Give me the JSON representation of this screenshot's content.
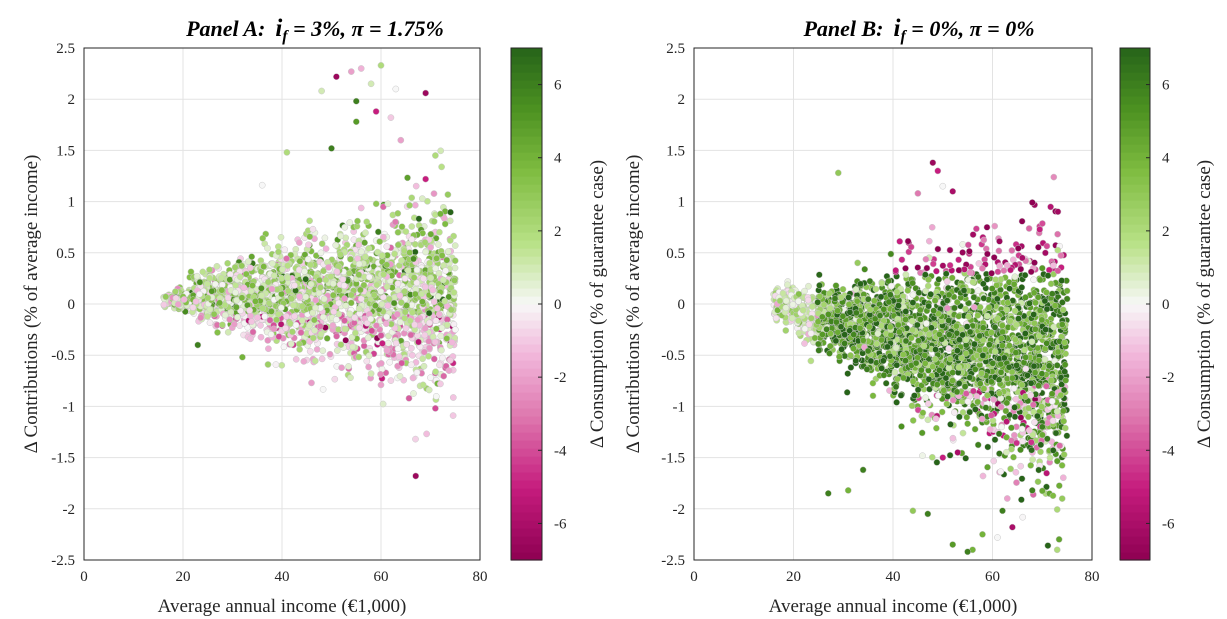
{
  "chart_data": [
    {
      "type": "scatter",
      "title": {
        "prefix": "Panel A:",
        "i_symbol": "i",
        "i_sub": "f",
        "i_value": " = 3%, ",
        "pi_symbol": "π",
        "pi_value": " = 1.75%"
      },
      "xlabel": "Average annual income (€1,000)",
      "ylabel": "Δ Contributions (% of average income)",
      "colorbar_label": "Δ Consumption (% of guarantee case)",
      "xlim": [
        0,
        80
      ],
      "ylim": [
        -2.5,
        2.5
      ],
      "clim": [
        -7,
        7
      ],
      "xticks": [
        "0",
        "20",
        "40",
        "60",
        "80"
      ],
      "yticks": [
        "-2.5",
        "-2",
        "-1.5",
        "-1",
        "-0.5",
        "0",
        "0.5",
        "1",
        "1.5",
        "2",
        "2.5"
      ],
      "cticks": [
        "-6",
        "-4",
        "-2",
        "0",
        "2",
        "4",
        "6"
      ],
      "grid": true,
      "colormap": "pink-white-green (PiYG)",
      "cloud": {
        "n": 2600,
        "x_min": 16,
        "x_max": 75,
        "y_center": 0.1,
        "c_center": 1.5
      },
      "points": [
        {
          "x": 51,
          "y": 2.22,
          "c": -6.5
        },
        {
          "x": 54,
          "y": 2.27,
          "c": -2
        },
        {
          "x": 56,
          "y": 2.3,
          "c": -1.5
        },
        {
          "x": 60,
          "y": 2.33,
          "c": 2
        },
        {
          "x": 58,
          "y": 2.15,
          "c": 1
        },
        {
          "x": 63,
          "y": 2.1,
          "c": 0
        },
        {
          "x": 48,
          "y": 2.08,
          "c": 1
        },
        {
          "x": 69,
          "y": 2.06,
          "c": -6.5
        },
        {
          "x": 55,
          "y": 1.98,
          "c": 6
        },
        {
          "x": 59,
          "y": 1.88,
          "c": -5
        },
        {
          "x": 62,
          "y": 1.82,
          "c": -1
        },
        {
          "x": 55,
          "y": 1.78,
          "c": 5
        },
        {
          "x": 64,
          "y": 1.6,
          "c": -2
        },
        {
          "x": 50,
          "y": 1.52,
          "c": 6
        },
        {
          "x": 41,
          "y": 1.48,
          "c": 2
        },
        {
          "x": 71,
          "y": 1.45,
          "c": 2
        },
        {
          "x": 36,
          "y": 1.16,
          "c": 0
        },
        {
          "x": 69,
          "y": 1.22,
          "c": -5
        },
        {
          "x": 72,
          "y": 0.88,
          "c": 4
        },
        {
          "x": 74,
          "y": 0.62,
          "c": 2
        },
        {
          "x": 75,
          "y": -0.25,
          "c": 0
        },
        {
          "x": 74,
          "y": -0.55,
          "c": -1
        },
        {
          "x": 70,
          "y": -0.72,
          "c": 0
        },
        {
          "x": 72,
          "y": -0.78,
          "c": -1
        },
        {
          "x": 60,
          "y": -0.79,
          "c": -2
        },
        {
          "x": 58,
          "y": -0.68,
          "c": 1
        },
        {
          "x": 71,
          "y": -1.02,
          "c": -4
        },
        {
          "x": 67,
          "y": -1.68,
          "c": -6.5
        },
        {
          "x": 32,
          "y": -0.52,
          "c": 4
        },
        {
          "x": 23,
          "y": -0.4,
          "c": 6
        }
      ]
    },
    {
      "type": "scatter",
      "title": {
        "prefix": "Panel B:",
        "i_symbol": "i",
        "i_sub": "f",
        "i_value": " = 0%, ",
        "pi_symbol": "π",
        "pi_value": " = 0%"
      },
      "xlabel": "Average annual income (€1,000)",
      "ylabel": "Δ Contributions (% of average income)",
      "colorbar_label": "Δ Consumption (% of guarantee case)",
      "xlim": [
        0,
        80
      ],
      "ylim": [
        -2.5,
        2.5
      ],
      "clim": [
        -7,
        7
      ],
      "xticks": [
        "0",
        "20",
        "40",
        "60",
        "80"
      ],
      "yticks": [
        "-2.5",
        "-2",
        "-1.5",
        "-1",
        "-0.5",
        "0",
        "0.5",
        "1",
        "1.5",
        "2",
        "2.5"
      ],
      "cticks": [
        "-6",
        "-4",
        "-2",
        "0",
        "2",
        "4",
        "6"
      ],
      "grid": true,
      "colormap": "pink-white-green (PiYG)",
      "cloud": {
        "n": 3200,
        "x_min": 16,
        "x_max": 75,
        "y_center": -0.3,
        "c_center": 5
      },
      "points": [
        {
          "x": 48,
          "y": 1.38,
          "c": -6.5
        },
        {
          "x": 49,
          "y": 1.3,
          "c": -5
        },
        {
          "x": 29,
          "y": 1.28,
          "c": 3
        },
        {
          "x": 50,
          "y": 1.15,
          "c": 0
        },
        {
          "x": 45,
          "y": 1.08,
          "c": -3
        },
        {
          "x": 52,
          "y": 1.1,
          "c": -6
        },
        {
          "x": 66,
          "y": 0.45,
          "c": -6
        },
        {
          "x": 70,
          "y": 0.35,
          "c": 5
        },
        {
          "x": 72,
          "y": 0.1,
          "c": 6
        },
        {
          "x": 75,
          "y": 0.05,
          "c": 6
        },
        {
          "x": 74,
          "y": -0.2,
          "c": 5
        },
        {
          "x": 73,
          "y": -0.6,
          "c": 6
        },
        {
          "x": 72,
          "y": -0.95,
          "c": 0
        },
        {
          "x": 73,
          "y": -1.05,
          "c": 1
        },
        {
          "x": 70,
          "y": -1.2,
          "c": 6
        },
        {
          "x": 68,
          "y": -1.82,
          "c": 6
        },
        {
          "x": 73,
          "y": -2.4,
          "c": 2
        },
        {
          "x": 58,
          "y": -2.25,
          "c": 4
        },
        {
          "x": 61,
          "y": -2.28,
          "c": 0
        },
        {
          "x": 56,
          "y": -2.4,
          "c": 4
        },
        {
          "x": 55,
          "y": -2.42,
          "c": 6
        },
        {
          "x": 52,
          "y": -2.35,
          "c": 5
        },
        {
          "x": 47,
          "y": -2.05,
          "c": 6
        },
        {
          "x": 44,
          "y": -2.02,
          "c": 3
        },
        {
          "x": 64,
          "y": -2.18,
          "c": -6
        },
        {
          "x": 62,
          "y": -2.02,
          "c": 6
        },
        {
          "x": 27,
          "y": -1.85,
          "c": 6
        },
        {
          "x": 31,
          "y": -1.82,
          "c": 4
        },
        {
          "x": 34,
          "y": -1.62,
          "c": 6
        },
        {
          "x": 50,
          "y": -1.5,
          "c": -5
        },
        {
          "x": 53,
          "y": -1.45,
          "c": -6
        }
      ]
    }
  ]
}
